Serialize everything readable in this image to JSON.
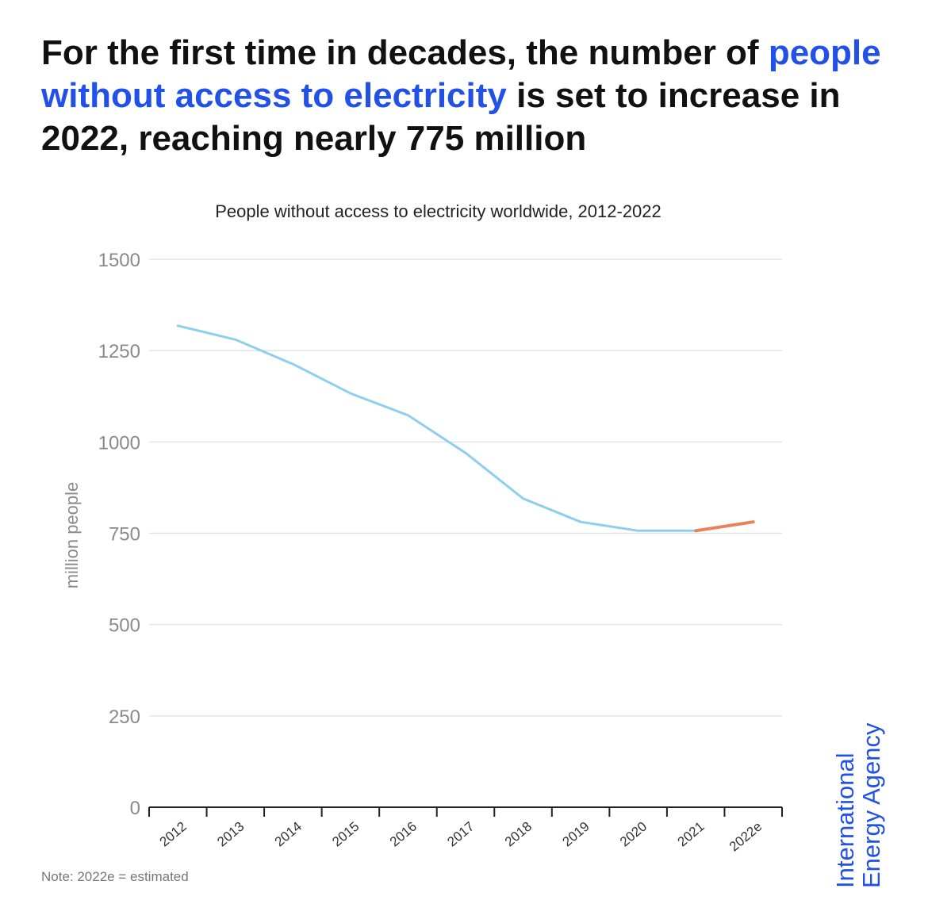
{
  "headline": {
    "part1": "For the first time in decades, the number of ",
    "highlight": "people without access to electricity",
    "part2": " is set to increase in 2022, reaching nearly 775 million",
    "highlight_color": "#2151e6"
  },
  "chart_data": {
    "type": "line",
    "title": "People without access to electricity worldwide, 2012-2022",
    "ylabel": "million people",
    "xlabel": "",
    "ylim": [
      0,
      1500
    ],
    "yticks": [
      0,
      250,
      500,
      750,
      1000,
      1250,
      1500
    ],
    "categories": [
      "2012",
      "2013",
      "2014",
      "2015",
      "2016",
      "2017",
      "2018",
      "2019",
      "2020",
      "2021",
      "2022e"
    ],
    "series": [
      {
        "color": "#8ecfee",
        "x": [
          "2012",
          "2013",
          "2014",
          "2015",
          "2016",
          "2017",
          "2018",
          "2019",
          "2020",
          "2021"
        ],
        "values": [
          1318,
          1280,
          1213,
          1133,
          1073,
          970,
          845,
          781,
          757,
          757
        ]
      },
      {
        "color": "#e8825a",
        "x": [
          "2021",
          "2022e"
        ],
        "values": [
          757,
          781
        ]
      }
    ],
    "grid": true,
    "legend": "none"
  },
  "note": "Note: 2022e = estimated",
  "brand": {
    "line1": "International",
    "line2": "Energy Agency",
    "color": "#2151e6"
  }
}
